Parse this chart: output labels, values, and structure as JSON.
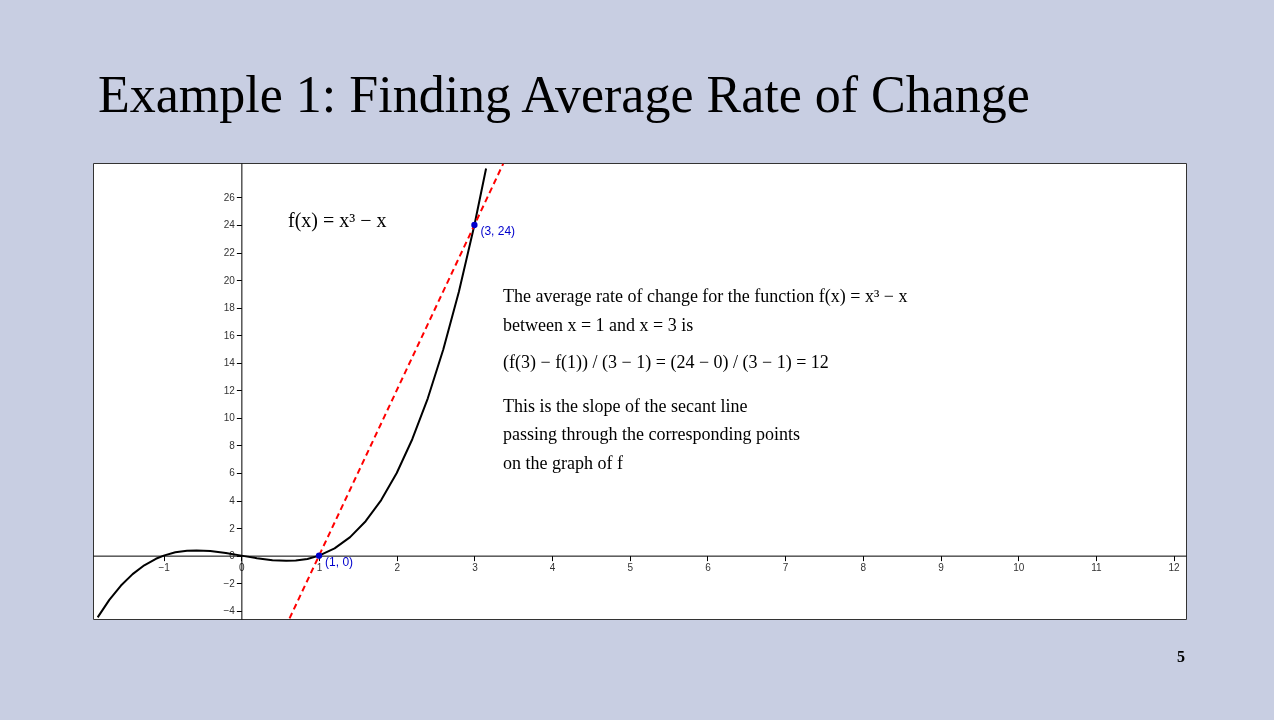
{
  "chart_data": {
    "type": "line",
    "title": "Example 1: Finding Average Rate of Change",
    "xlim": [
      -1.91,
      12.16
    ],
    "ylim": [
      -4.6,
      28.5
    ],
    "xticks": [
      -1,
      0,
      1,
      2,
      3,
      4,
      5,
      6,
      7,
      8,
      9,
      10,
      11,
      12
    ],
    "yticks": [
      -4,
      -2,
      0,
      2,
      4,
      6,
      8,
      10,
      12,
      14,
      16,
      18,
      20,
      22,
      24,
      26
    ],
    "grid": false,
    "series": [
      {
        "color": "#000000",
        "line_style": "solid",
        "x": [
          -1.85,
          -1.7,
          -1.55,
          -1.4,
          -1.25,
          -1.1,
          -1,
          -0.85,
          -0.7,
          -0.577,
          -0.4,
          -0.2,
          0,
          0.2,
          0.4,
          0.577,
          0.7,
          0.85,
          1,
          1.2,
          1.4,
          1.6,
          1.8,
          2,
          2.2,
          2.4,
          2.6,
          2.8,
          3,
          3.15
        ],
        "values": [
          -4.48,
          -3.21,
          -2.17,
          -1.34,
          -0.7,
          -0.23,
          0,
          0.24,
          0.36,
          0.38,
          0.34,
          0.19,
          0,
          -0.19,
          -0.34,
          -0.38,
          -0.36,
          -0.24,
          0,
          0.53,
          1.34,
          2.5,
          4.03,
          6,
          8.45,
          11.42,
          14.98,
          19.15,
          24,
          28.1
        ]
      },
      {
        "color": "#ff0000",
        "line_style": "dashed",
        "x": [
          0.62,
          3.37
        ],
        "values": [
          -4.56,
          28.44
        ]
      },
      {
        "type": "scatter",
        "color": "#0000cc",
        "marker": "circle",
        "x": [
          1,
          3
        ],
        "values": [
          0,
          24
        ],
        "value_labels": [
          "(1, 0)",
          "(3, 24)"
        ]
      }
    ],
    "annotations": [
      "f(x) = x³ − x",
      "The average rate of change for the function f(x) = x³ − x",
      "between x = 1 and x = 3 is",
      "(f(3) − f(1)) / (3 − 1) = (24 − 0) / (3 − 1) = 12",
      "This is the slope of the secant line",
      "passing through the corresponding points",
      "on the graph of f",
      "5"
    ]
  }
}
